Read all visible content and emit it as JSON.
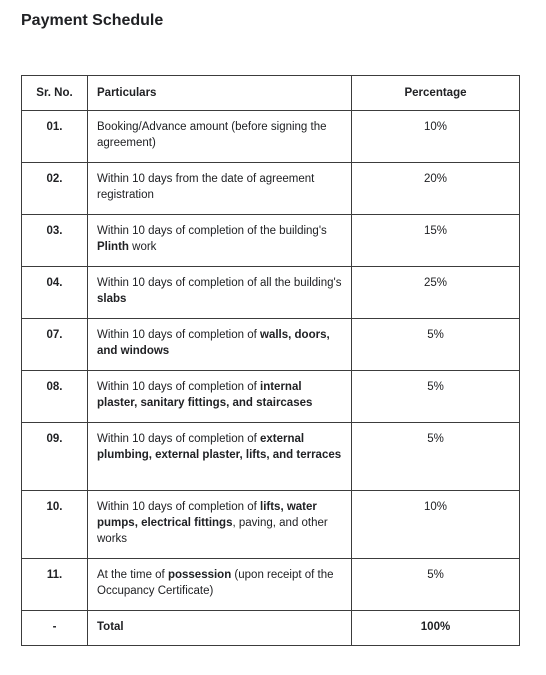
{
  "title": "Payment Schedule",
  "table": {
    "headers": {
      "sr": "Sr. No.",
      "particulars": "Particulars",
      "percentage": "Percentage"
    },
    "rows": [
      {
        "sr": "01.",
        "particulars": [
          {
            "t": "Booking/Advance amount (before signing the agreement)"
          }
        ],
        "percentage": "10%"
      },
      {
        "sr": "02.",
        "particulars": [
          {
            "t": "Within 10 days from the date of agreement registration"
          }
        ],
        "percentage": "20%"
      },
      {
        "sr": "03.",
        "particulars": [
          {
            "t": "Within 10 days of completion of the building's "
          },
          {
            "t": "Plinth",
            "b": true
          },
          {
            "t": " work"
          }
        ],
        "percentage": "15%"
      },
      {
        "sr": "04.",
        "particulars": [
          {
            "t": "Within 10 days of completion of all the building's "
          },
          {
            "t": "slabs",
            "b": true
          }
        ],
        "percentage": "25%"
      },
      {
        "sr": "07.",
        "particulars": [
          {
            "t": "Within 10 days of completion of "
          },
          {
            "t": "walls, doors, and windows",
            "b": true
          }
        ],
        "percentage": "5%"
      },
      {
        "sr": "08.",
        "particulars": [
          {
            "t": "Within 10 days of completion of "
          },
          {
            "t": "internal plaster, sanitary fittings, and staircases",
            "b": true
          }
        ],
        "percentage": "5%"
      },
      {
        "sr": "09.",
        "particulars": [
          {
            "t": "Within 10 days of completion of "
          },
          {
            "t": "external plumbing, external plaster, lifts, and terraces",
            "b": true
          }
        ],
        "percentage": "5%"
      },
      {
        "sr": "10.",
        "particulars": [
          {
            "t": "Within 10 days of completion of "
          },
          {
            "t": "lifts, water pumps, electrical fittings",
            "b": true
          },
          {
            "t": ", paving, and other works"
          }
        ],
        "percentage": "10%"
      },
      {
        "sr": "11.",
        "particulars": [
          {
            "t": "At the time of "
          },
          {
            "t": "possession",
            "b": true
          },
          {
            "t": " (upon receipt of the Occupancy Certificate)"
          }
        ],
        "percentage": "5%"
      }
    ],
    "total": {
      "sr": "-",
      "particulars": "Total",
      "percentage": "100%"
    }
  }
}
